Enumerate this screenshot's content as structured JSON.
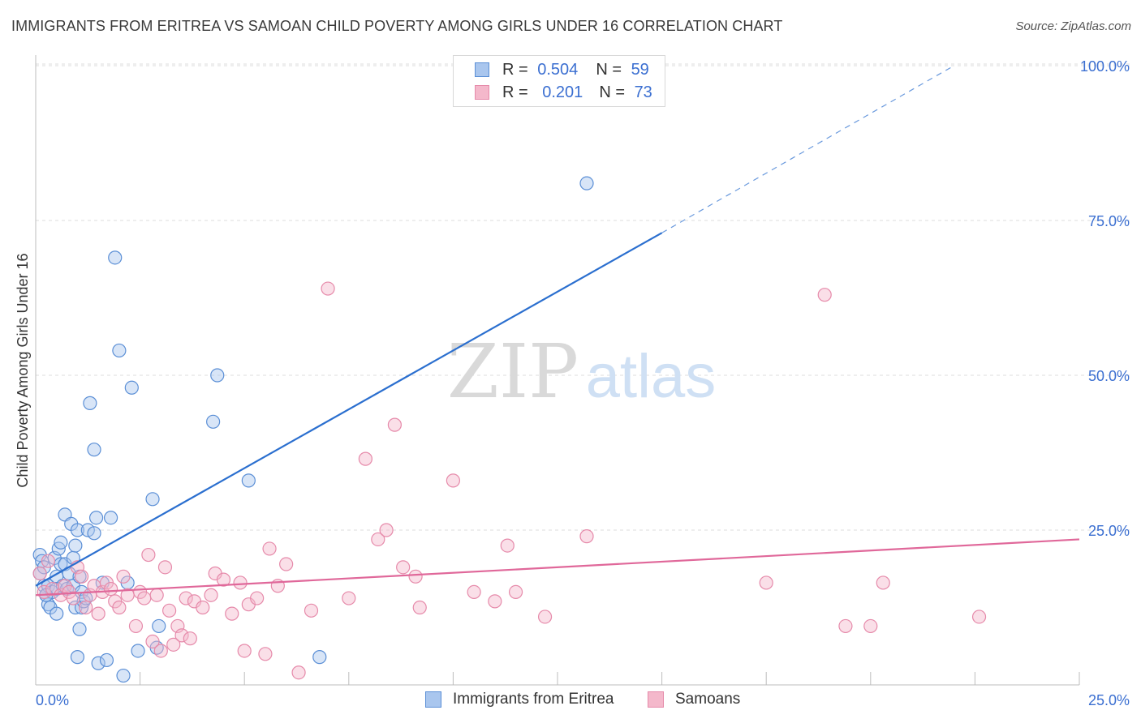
{
  "title": "IMMIGRANTS FROM ERITREA VS SAMOAN CHILD POVERTY AMONG GIRLS UNDER 16 CORRELATION CHART",
  "source": "Source: ZipAtlas.com",
  "watermark": {
    "zip": "ZIP",
    "atlas": "atlas"
  },
  "colors": {
    "eritrea_fill": "#a9c6ee",
    "eritrea_stroke": "#5b8fd6",
    "eritrea_line": "#2b6fcf",
    "samoan_fill": "#f4b8cb",
    "samoan_stroke": "#e68aaa",
    "samoan_line": "#e0689a",
    "grid": "#dcdcdc",
    "tick_label": "#3b6fd1"
  },
  "legend": {
    "rows": [
      {
        "r_label": "R =",
        "r_value": "0.504",
        "n_label": "N =",
        "n_value": "59"
      },
      {
        "r_label": "R =",
        "r_value": "0.201",
        "n_label": "N =",
        "n_value": "73"
      }
    ]
  },
  "chart_data": {
    "type": "scatter",
    "ylabel": "Child Poverty Among Girls Under 16",
    "xlabel": "",
    "xlim": [
      0,
      25
    ],
    "ylim": [
      0,
      100
    ],
    "x_tick_labels": [
      "0.0%",
      "25.0%"
    ],
    "y_ticks": [
      25,
      50,
      75,
      100
    ],
    "y_tick_labels": [
      "25.0%",
      "50.0%",
      "75.0%",
      "100.0%"
    ],
    "grid": true,
    "legend_placement": "top-center",
    "series": [
      {
        "name": "Immigrants from Eritrea",
        "trend": {
          "x0": 0,
          "y0": 16,
          "x1": 15,
          "y1": 73,
          "dashed_to_x": 22,
          "dashed_to_y": 100
        },
        "points": [
          [
            0.1,
            21
          ],
          [
            0.1,
            18
          ],
          [
            0.15,
            20
          ],
          [
            0.2,
            19
          ],
          [
            0.2,
            16
          ],
          [
            0.25,
            14.5
          ],
          [
            0.3,
            13
          ],
          [
            0.3,
            16
          ],
          [
            0.35,
            12.5
          ],
          [
            0.4,
            15
          ],
          [
            0.45,
            20.5
          ],
          [
            0.5,
            17.5
          ],
          [
            0.5,
            15.5
          ],
          [
            0.5,
            11.5
          ],
          [
            0.55,
            22
          ],
          [
            0.6,
            23
          ],
          [
            0.6,
            19.5
          ],
          [
            0.65,
            16
          ],
          [
            0.7,
            19.5
          ],
          [
            0.7,
            27.5
          ],
          [
            0.75,
            15.5
          ],
          [
            0.8,
            18
          ],
          [
            0.85,
            26
          ],
          [
            0.9,
            20.5
          ],
          [
            0.9,
            16
          ],
          [
            0.95,
            22.5
          ],
          [
            0.95,
            12.5
          ],
          [
            1.0,
            25
          ],
          [
            1.0,
            4.5
          ],
          [
            1.05,
            9
          ],
          [
            1.05,
            17.5
          ],
          [
            1.1,
            12.5
          ],
          [
            1.1,
            15
          ],
          [
            1.15,
            13.5
          ],
          [
            1.2,
            14
          ],
          [
            1.25,
            25
          ],
          [
            1.3,
            45.5
          ],
          [
            1.4,
            38
          ],
          [
            1.4,
            24.5
          ],
          [
            1.45,
            27
          ],
          [
            1.5,
            3.5
          ],
          [
            1.6,
            16.5
          ],
          [
            1.7,
            4
          ],
          [
            1.8,
            27
          ],
          [
            1.9,
            69
          ],
          [
            2.0,
            54
          ],
          [
            2.1,
            1.5
          ],
          [
            2.2,
            16.5
          ],
          [
            2.3,
            48
          ],
          [
            2.45,
            5.5
          ],
          [
            2.8,
            30
          ],
          [
            2.9,
            6
          ],
          [
            2.95,
            9.5
          ],
          [
            4.25,
            42.5
          ],
          [
            4.35,
            50
          ],
          [
            5.1,
            33
          ],
          [
            6.8,
            4.5
          ],
          [
            13.2,
            81
          ],
          [
            0.25,
            14.5
          ]
        ]
      },
      {
        "name": "Samoans",
        "trend": {
          "x0": 0,
          "y0": 14.5,
          "x1": 25,
          "y1": 23.5
        },
        "points": [
          [
            0.1,
            18
          ],
          [
            0.2,
            15
          ],
          [
            0.3,
            20
          ],
          [
            0.4,
            15.5
          ],
          [
            0.6,
            14.5
          ],
          [
            0.7,
            16
          ],
          [
            0.8,
            15
          ],
          [
            0.9,
            14
          ],
          [
            1.0,
            19
          ],
          [
            1.1,
            17.5
          ],
          [
            1.2,
            12.5
          ],
          [
            1.3,
            14.5
          ],
          [
            1.4,
            16
          ],
          [
            1.5,
            11.5
          ],
          [
            1.6,
            15
          ],
          [
            1.7,
            16.5
          ],
          [
            1.8,
            15.5
          ],
          [
            1.9,
            13.5
          ],
          [
            2.0,
            12.5
          ],
          [
            2.1,
            17.5
          ],
          [
            2.2,
            14.5
          ],
          [
            2.4,
            9.5
          ],
          [
            2.5,
            15
          ],
          [
            2.6,
            14
          ],
          [
            2.7,
            21
          ],
          [
            2.8,
            7
          ],
          [
            2.9,
            14.5
          ],
          [
            3.0,
            5.5
          ],
          [
            3.1,
            19
          ],
          [
            3.2,
            12
          ],
          [
            3.3,
            6.5
          ],
          [
            3.4,
            9.5
          ],
          [
            3.5,
            8
          ],
          [
            3.6,
            14
          ],
          [
            3.7,
            7.5
          ],
          [
            3.8,
            13.5
          ],
          [
            4.0,
            12.5
          ],
          [
            4.2,
            14.5
          ],
          [
            4.3,
            18
          ],
          [
            4.5,
            17
          ],
          [
            4.7,
            11.5
          ],
          [
            4.9,
            16.5
          ],
          [
            5.0,
            5.5
          ],
          [
            5.1,
            13
          ],
          [
            5.3,
            14
          ],
          [
            5.5,
            5
          ],
          [
            5.6,
            22
          ],
          [
            5.8,
            16
          ],
          [
            6.0,
            19.5
          ],
          [
            6.3,
            2
          ],
          [
            6.6,
            12
          ],
          [
            7.0,
            64
          ],
          [
            7.5,
            14
          ],
          [
            7.9,
            36.5
          ],
          [
            8.2,
            23.5
          ],
          [
            8.4,
            25
          ],
          [
            8.6,
            42
          ],
          [
            8.8,
            19
          ],
          [
            9.1,
            17.5
          ],
          [
            9.2,
            12.5
          ],
          [
            10.0,
            33
          ],
          [
            10.5,
            15
          ],
          [
            11.0,
            13.5
          ],
          [
            11.3,
            22.5
          ],
          [
            11.5,
            15
          ],
          [
            12.2,
            11
          ],
          [
            13.2,
            24
          ],
          [
            17.5,
            16.5
          ],
          [
            18.9,
            63
          ],
          [
            19.4,
            9.5
          ],
          [
            20.0,
            9.5
          ],
          [
            20.3,
            16.5
          ],
          [
            22.6,
            11
          ]
        ]
      }
    ]
  }
}
